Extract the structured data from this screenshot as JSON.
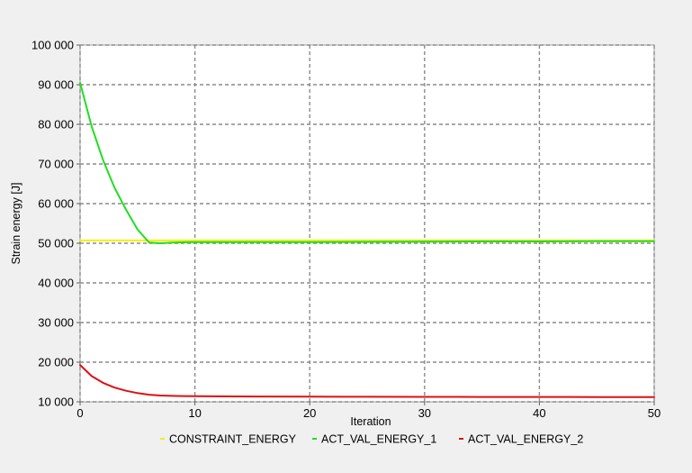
{
  "chart_data": {
    "type": "line",
    "title": "",
    "xlabel": "Iteration",
    "ylabel": "Strain energy [J]",
    "xlim": [
      0,
      50
    ],
    "ylim": [
      10000,
      100000
    ],
    "x_ticks": [
      0,
      10,
      20,
      30,
      40,
      50
    ],
    "x_tick_labels": [
      "0",
      "10",
      "20",
      "30",
      "40",
      "50"
    ],
    "y_ticks": [
      10000,
      20000,
      30000,
      40000,
      50000,
      60000,
      70000,
      80000,
      90000,
      100000
    ],
    "y_tick_labels": [
      "10 000",
      "20 000",
      "30 000",
      "40 000",
      "50 000",
      "60 000",
      "70 000",
      "80 000",
      "90 000",
      "100 000"
    ],
    "grid": true,
    "grid_style": "dashed",
    "legend_position": "bottom",
    "series": [
      {
        "name": "CONSTRAINT_ENERGY",
        "color": "#f2f200",
        "x": [
          0,
          50
        ],
        "y": [
          50700,
          50700
        ]
      },
      {
        "name": "ACT_VAL_ENERGY_1",
        "color": "#22dd22",
        "x": [
          0,
          1,
          2,
          3,
          4,
          5,
          6,
          7,
          8,
          9,
          10,
          15,
          20,
          25,
          30,
          35,
          40,
          45,
          50
        ],
        "y": [
          90500,
          79500,
          71000,
          64000,
          58500,
          53500,
          50200,
          50000,
          50150,
          50250,
          50300,
          50300,
          50300,
          50350,
          50400,
          50450,
          50450,
          50500,
          50500
        ]
      },
      {
        "name": "ACT_VAL_ENERGY_2",
        "color": "#dd1111",
        "x": [
          0,
          1,
          2,
          3,
          4,
          5,
          6,
          7,
          8,
          9,
          10,
          15,
          20,
          25,
          30,
          35,
          40,
          45,
          50
        ],
        "y": [
          19300,
          16500,
          14800,
          13600,
          12800,
          12200,
          11800,
          11600,
          11500,
          11450,
          11400,
          11350,
          11300,
          11280,
          11250,
          11230,
          11220,
          11200,
          11200
        ]
      }
    ]
  }
}
